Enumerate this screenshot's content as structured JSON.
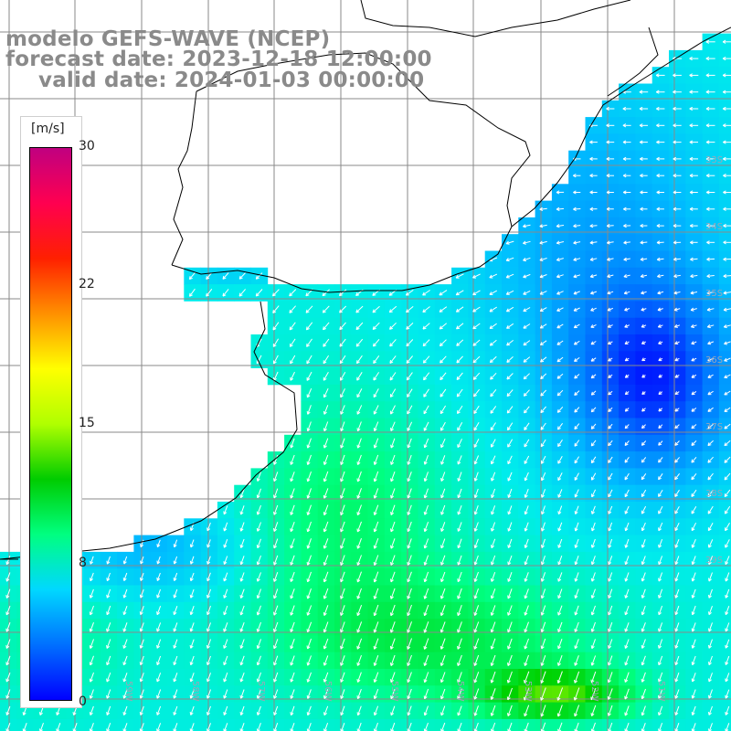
{
  "title": {
    "line1": "modelo GEFS-WAVE (NCEP)",
    "line2": "forecast date: 2023-12-18 12:00:00",
    "line3": "valid date: 2024-01-03 00:00:00"
  },
  "colorbar": {
    "unit": "[m/s]",
    "min": 0,
    "max": 30,
    "ticks": [
      "30",
      "22",
      "15",
      "8",
      "0"
    ],
    "tick_values": [
      30,
      22,
      15,
      8,
      0
    ],
    "colors": [
      "#0000ff",
      "#0070ff",
      "#00d8ff",
      "#00ff80",
      "#00cc00",
      "#b0ff00",
      "#ffff00",
      "#ff9000",
      "#ff2000",
      "#ff0050",
      "#c00080"
    ]
  },
  "map": {
    "variable": "wind speed and direction",
    "lat_labels": [
      "33S",
      "34S",
      "35S",
      "36S",
      "37S",
      "38S",
      "39S"
    ],
    "lon_labels": [
      "61W",
      "60W",
      "59W",
      "58W",
      "57W",
      "56W",
      "55W",
      "54W",
      "53W",
      "52W",
      "51W"
    ],
    "region": "Rio de la Plata / Uruguay coast, South Atlantic",
    "prevailing_flow": "south-southwest",
    "min_speed_region": "offshore east (~36-37S, 51-52W)",
    "max_speed_region": "south (~40S, 52-53W)"
  }
}
